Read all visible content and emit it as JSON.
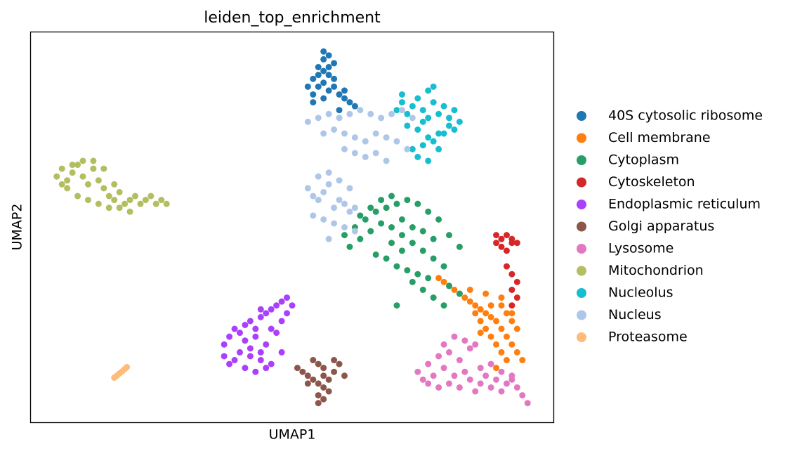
{
  "chart_data": {
    "type": "scatter",
    "title": "leiden_top_enrichment",
    "x_label": "UMAP1",
    "y_label": "UMAP2",
    "xlim": [
      0,
      100
    ],
    "ylim": [
      0,
      100
    ],
    "legend": "outside-right",
    "series": [
      {
        "name": "40S cytosolic ribosome",
        "color": "#1f77b4",
        "x": [
          54,
          55,
          56,
          57,
          58,
          55,
          56,
          57,
          54,
          53,
          56,
          58,
          59,
          60,
          61,
          62,
          57,
          55,
          56,
          58,
          59,
          57,
          56,
          54,
          60
        ],
        "values": [
          88,
          89,
          90,
          91,
          92,
          86,
          87,
          85,
          84,
          86,
          93,
          88,
          84,
          83,
          82,
          81,
          94,
          91,
          83,
          86,
          80,
          89,
          95,
          82,
          85
        ]
      },
      {
        "name": "Cell membrane",
        "color": "#ff7f0e",
        "x": [
          78,
          79,
          80,
          81,
          82,
          83,
          84,
          85,
          86,
          87,
          88,
          89,
          90,
          91,
          92,
          93,
          88,
          89,
          90,
          91,
          87,
          86,
          85,
          92,
          93,
          94,
          89,
          90,
          91,
          88,
          87,
          92,
          90,
          86,
          84
        ],
        "values": [
          37,
          36,
          35,
          34,
          33,
          32,
          31,
          30,
          29,
          28,
          27,
          26,
          30,
          28,
          26,
          24,
          22,
          20,
          18,
          16,
          24,
          26,
          28,
          20,
          18,
          16,
          14,
          24,
          22,
          30,
          33,
          28,
          32,
          23,
          34
        ]
      },
      {
        "name": "Cytoplasm",
        "color": "#279e68",
        "x": [
          60,
          62,
          64,
          66,
          68,
          70,
          72,
          74,
          76,
          78,
          80,
          82,
          61,
          63,
          65,
          67,
          69,
          71,
          73,
          75,
          77,
          79,
          63,
          65,
          67,
          69,
          71,
          73,
          75,
          77,
          66,
          68,
          70,
          72,
          74,
          76,
          69,
          71,
          73,
          75,
          77,
          79,
          80,
          82,
          70
        ],
        "values": [
          48,
          50,
          52,
          54,
          55,
          56,
          57,
          56,
          54,
          52,
          48,
          45,
          45,
          47,
          49,
          51,
          50,
          48,
          46,
          44,
          42,
          40,
          53,
          55,
          57,
          58,
          52,
          50,
          49,
          47,
          43,
          42,
          40,
          39,
          38,
          37,
          46,
          44,
          36,
          34,
          32,
          30,
          35,
          33,
          30
        ]
      },
      {
        "name": "Cytoskeleton",
        "color": "#d62728",
        "x": [
          89,
          90,
          91,
          92,
          93,
          90,
          91,
          92,
          89,
          92,
          93,
          92,
          93,
          91,
          92
        ],
        "values": [
          46,
          47,
          48,
          47,
          46,
          45,
          44,
          46,
          48,
          38,
          36,
          34,
          32,
          40,
          30
        ]
      },
      {
        "name": "Endoplasmic reticulum",
        "color": "#aa40fc",
        "x": [
          37,
          38,
          39,
          40,
          41,
          42,
          43,
          44,
          45,
          46,
          47,
          48,
          49,
          50,
          40,
          42,
          44,
          46,
          48,
          41,
          43,
          45,
          47,
          39,
          41,
          43,
          45,
          42,
          44,
          46,
          37,
          38,
          44,
          48,
          49
        ],
        "values": [
          20,
          22,
          24,
          23,
          25,
          26,
          24,
          27,
          28,
          29,
          30,
          31,
          32,
          30,
          18,
          17,
          16,
          15,
          18,
          21,
          22,
          20,
          23,
          16,
          14,
          13,
          14,
          19,
          18,
          24,
          17,
          15,
          29,
          26,
          28
        ]
      },
      {
        "name": "Golgi apparatus",
        "color": "#8c564b",
        "x": [
          51,
          52,
          53,
          54,
          55,
          56,
          57,
          58,
          59,
          54,
          55,
          56,
          55,
          56,
          57,
          53,
          58,
          60,
          55,
          56
        ],
        "values": [
          14,
          13,
          12,
          11,
          10,
          9,
          11,
          13,
          15,
          16,
          15,
          14,
          7,
          6,
          8,
          10,
          16,
          12,
          5,
          12
        ]
      },
      {
        "name": "Lysosome",
        "color": "#e377c2",
        "x": [
          74,
          75,
          76,
          77,
          78,
          79,
          80,
          81,
          82,
          83,
          84,
          85,
          86,
          87,
          88,
          89,
          90,
          91,
          92,
          93,
          94,
          95,
          76,
          78,
          80,
          82,
          84,
          86,
          88,
          90,
          92,
          79,
          81,
          83,
          85
        ],
        "values": [
          13,
          11,
          10,
          12,
          9,
          14,
          10,
          12,
          9,
          13,
          11,
          8,
          10,
          12,
          9,
          11,
          8,
          10,
          12,
          9,
          7,
          5,
          15,
          17,
          18,
          16,
          19,
          14,
          15,
          13,
          11,
          20,
          22,
          21,
          20
        ]
      },
      {
        "name": "Mitochondrion",
        "color": "#b5bd61",
        "x": [
          5,
          6,
          7,
          8,
          9,
          10,
          11,
          12,
          13,
          14,
          15,
          16,
          17,
          18,
          19,
          20,
          21,
          22,
          23,
          24,
          25,
          26,
          7,
          9,
          11,
          13,
          15,
          17,
          19,
          10,
          12,
          14,
          8,
          6,
          16
        ],
        "values": [
          63,
          65,
          62,
          64,
          66,
          63,
          61,
          65,
          62,
          60,
          58,
          57,
          59,
          56,
          57,
          58,
          56,
          57,
          58,
          56,
          57,
          56,
          60,
          58,
          57,
          56,
          55,
          55,
          54,
          67,
          67,
          65,
          66,
          61,
          61
        ]
      },
      {
        "name": "Nucleolus",
        "color": "#17becf",
        "x": [
          70,
          71,
          72,
          73,
          74,
          75,
          76,
          77,
          78,
          79,
          80,
          81,
          82,
          72,
          74,
          76,
          78,
          80,
          73,
          75,
          77,
          79,
          74,
          76,
          78,
          71,
          76,
          77,
          81,
          75
        ],
        "values": [
          80,
          82,
          79,
          81,
          83,
          80,
          78,
          82,
          79,
          81,
          78,
          80,
          77,
          76,
          75,
          73,
          74,
          76,
          70,
          71,
          72,
          74,
          68,
          67,
          70,
          84,
          85,
          86,
          75,
          77
        ]
      },
      {
        "name": "Nucleus",
        "color": "#aec7e8",
        "x": [
          53,
          55,
          57,
          59,
          61,
          63,
          65,
          67,
          69,
          71,
          73,
          56,
          58,
          60,
          62,
          64,
          66,
          68,
          70,
          72,
          60,
          62,
          64,
          66,
          68,
          53,
          54,
          55,
          56,
          57,
          58,
          59,
          60,
          61,
          62,
          54,
          56,
          58,
          60,
          62,
          55,
          57,
          59,
          61,
          57
        ],
        "values": [
          77,
          78,
          79,
          78,
          79,
          80,
          79,
          78,
          79,
          80,
          78,
          74,
          75,
          74,
          73,
          72,
          74,
          73,
          72,
          70,
          70,
          69,
          68,
          69,
          67,
          60,
          58,
          57,
          59,
          61,
          55,
          57,
          56,
          54,
          55,
          53,
          52,
          51,
          50,
          49,
          63,
          64,
          62,
          60,
          47
        ]
      },
      {
        "name": "Proteasome",
        "color": "#ffbb78",
        "x": [
          16,
          16.5,
          17,
          17.5,
          18,
          18.4
        ],
        "values": [
          11.5,
          12,
          12.6,
          13.1,
          13.7,
          14.2
        ]
      }
    ]
  }
}
